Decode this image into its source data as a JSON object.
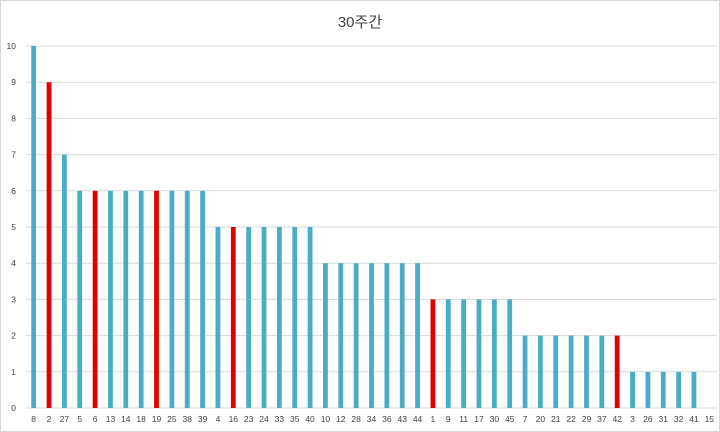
{
  "chart_data": {
    "type": "bar",
    "title": "30주간",
    "xlabel": "",
    "ylabel": "",
    "ylim": [
      0,
      10
    ],
    "yticks": [
      0,
      1,
      2,
      3,
      4,
      5,
      6,
      7,
      8,
      9,
      10
    ],
    "grid": true,
    "legend": "none",
    "categories": [
      "8",
      "2",
      "27",
      "5",
      "6",
      "13",
      "14",
      "18",
      "19",
      "25",
      "38",
      "39",
      "4",
      "16",
      "23",
      "24",
      "33",
      "35",
      "40",
      "10",
      "12",
      "28",
      "34",
      "36",
      "43",
      "44",
      "1",
      "9",
      "11",
      "17",
      "30",
      "45",
      "7",
      "20",
      "21",
      "22",
      "29",
      "37",
      "42",
      "3",
      "26",
      "31",
      "32",
      "41",
      "15"
    ],
    "values": [
      10,
      9,
      7,
      6,
      6,
      6,
      6,
      6,
      6,
      6,
      6,
      6,
      5,
      5,
      5,
      5,
      5,
      5,
      5,
      4,
      4,
      4,
      4,
      4,
      4,
      4,
      3,
      3,
      3,
      3,
      3,
      3,
      2,
      2,
      2,
      2,
      2,
      2,
      2,
      1,
      1,
      1,
      1,
      1,
      0
    ],
    "highlighted_categories": [
      "2",
      "6",
      "19",
      "16",
      "1",
      "42"
    ],
    "colors": {
      "default_bar": "#4bacc6",
      "highlight_bar": "#e00000",
      "grid": "#d9d9d9",
      "text": "#404040"
    }
  }
}
